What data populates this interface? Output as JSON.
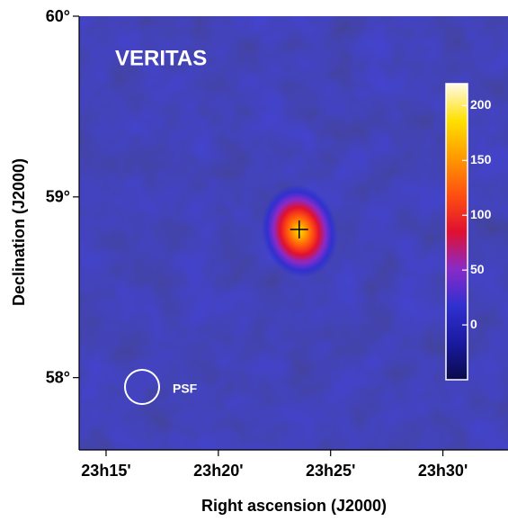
{
  "chart_data": {
    "type": "heatmap",
    "title": "VERITAS",
    "xlabel": "Right ascension (J2000)",
    "ylabel": "Declination (J2000)",
    "xlim": [
      13.8,
      32.9
    ],
    "ylim": [
      57.6,
      60.0
    ],
    "xticks": [
      {
        "value": 15,
        "label": "23h15'"
      },
      {
        "value": 20,
        "label": "23h20'"
      },
      {
        "value": 25,
        "label": "23h25'"
      },
      {
        "value": 30,
        "label": "23h30'"
      }
    ],
    "yticks": [
      {
        "value": 58,
        "label": "58°"
      },
      {
        "value": 59,
        "label": "59°"
      },
      {
        "value": 60,
        "label": "60°"
      }
    ],
    "colorbar": {
      "clim": [
        -50,
        220
      ],
      "ticks": [
        0,
        50,
        100,
        150,
        200
      ],
      "colors": [
        "#0a0a4a",
        "#1a1aa0",
        "#3030d0",
        "#8a2ac8",
        "#e01030",
        "#ff5010",
        "#ff9a00",
        "#ffe000",
        "#fffbe8"
      ]
    },
    "source": {
      "x": 23.6,
      "y": 58.82
    },
    "psf_label": "PSF"
  }
}
